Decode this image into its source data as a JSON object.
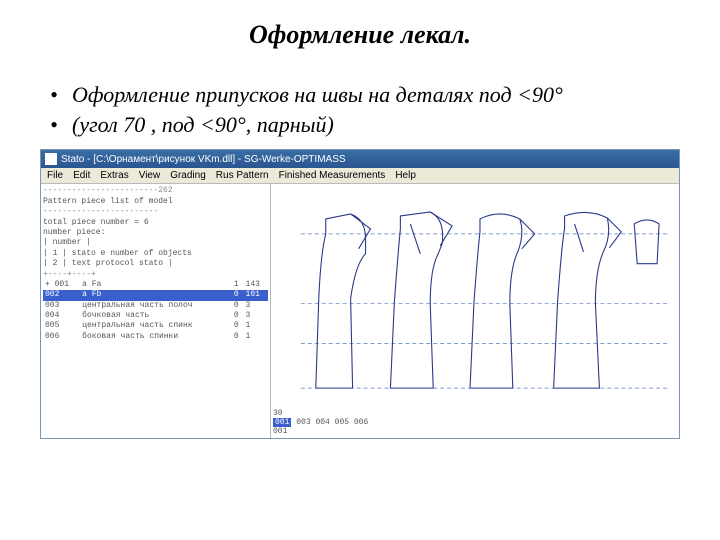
{
  "title": "Оформление лекал.",
  "bullets": [
    "Оформление припусков на швы на деталях под <90°",
    " (угол 70 , под <90°, парный)"
  ],
  "window": {
    "title": "Stato - [C:\\Орнамент\\рисунок VKm.dll] - SG-Werke-OPTIMASS",
    "menu": [
      "File",
      "Edit",
      "Extras",
      "View",
      "Grading",
      "Rus Pattern",
      "Finished Measurements",
      "Help"
    ]
  },
  "textpanel": {
    "header_sep": "------------------------262",
    "l1": "Pattern piece list of model",
    "l2": "------------------------",
    "l3": "total piece number = 6",
    "l4": "number piece:",
    "tbl_head": "| number |",
    "tbl_r1": "|  1 |  stato e    number of objects",
    "tbl_r2": "|  2 |  text       protocol stato |",
    "tbl_sep": "+----+----+",
    "rows": [
      {
        "c1": "+ 001",
        "c2": "a Fa",
        "c3": "1",
        "c4": "143"
      },
      {
        "c1": "002",
        "c2": "a Fb",
        "c3": "0",
        "c4": "101"
      },
      {
        "c1": "003",
        "c2": "центральная часть полоч",
        "c3": "0",
        "c4": "3"
      },
      {
        "c1": "004",
        "c2": "бочковая часть",
        "c3": "0",
        "c4": "3"
      },
      {
        "c1": "005",
        "c2": "центральная часть спинк",
        "c3": "0",
        "c4": "1"
      },
      {
        "c1": "006",
        "c2": "боковая часть спинки",
        "c3": "0",
        "c4": "1"
      }
    ],
    "highlight_row": 1
  },
  "bottom": {
    "line1": "30",
    "codes": [
      "001",
      "003",
      "004",
      "005",
      "006"
    ],
    "line3": "001",
    "highlight_code": 0
  },
  "pattern": {
    "stroke": "#2a3a8a",
    "dash_stroke": "#5a78c0",
    "guide_y": [
      40,
      110,
      150,
      195
    ]
  }
}
